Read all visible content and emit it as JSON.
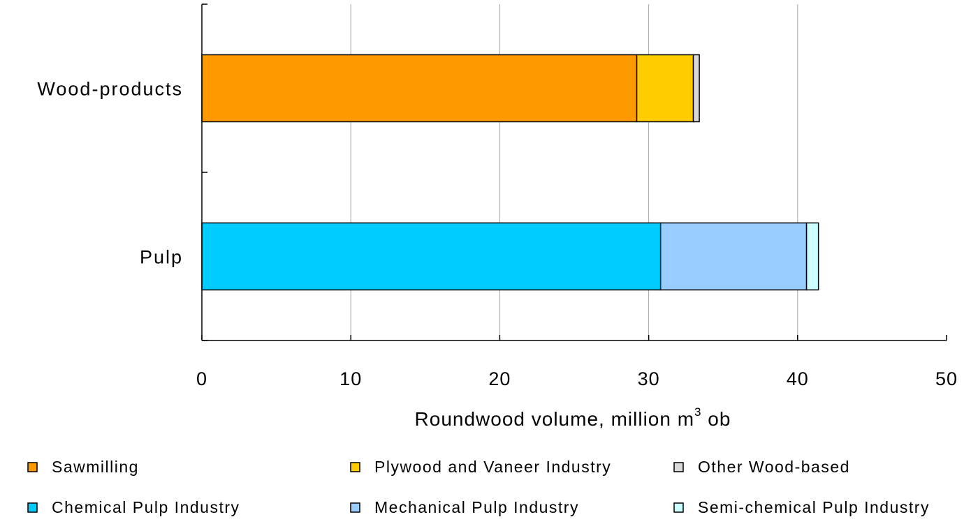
{
  "chart_data": {
    "type": "bar",
    "orientation": "horizontal",
    "stacked": true,
    "categories": [
      "Wood-products",
      "Pulp"
    ],
    "series": [
      {
        "name": "Sawmilling",
        "color": "#FF9900",
        "values": [
          29.2,
          0
        ]
      },
      {
        "name": "Plywood and Vaneer Industry",
        "color": "#FFCC00",
        "values": [
          3.8,
          0
        ]
      },
      {
        "name": "Other Wood-based",
        "color": "#D9D9D9",
        "values": [
          0.4,
          0
        ]
      },
      {
        "name": "Chemical Pulp Industry",
        "color": "#00CCFF",
        "values": [
          0,
          30.8
        ]
      },
      {
        "name": "Mechanical Pulp Industry",
        "color": "#99CCFF",
        "values": [
          0,
          9.8
        ]
      },
      {
        "name": "Semi-chemical Pulp Industry",
        "color": "#CCFFFF",
        "values": [
          0,
          0.8
        ]
      }
    ],
    "xlabel_main": "Roundwood volume, million m",
    "xlabel_sup": "3",
    "xlabel_suffix": " ob",
    "xlim": [
      0,
      50
    ],
    "xticks": [
      0,
      10,
      20,
      30,
      40,
      50
    ],
    "grid": "vertical",
    "legend_position": "bottom"
  }
}
